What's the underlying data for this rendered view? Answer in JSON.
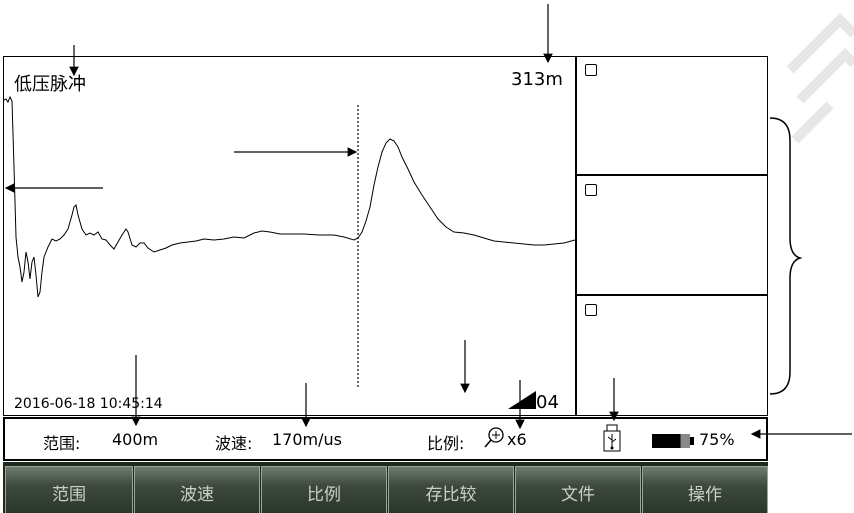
{
  "screen": {
    "mode_label": "低压脉冲",
    "distance_readout": "313m",
    "timestamp": "2016-06-18 10:45:14",
    "cursor_index": "04"
  },
  "status": {
    "range_label": "范围:",
    "range_value": "400m",
    "speed_label": "波速:",
    "speed_value": "170m/us",
    "scale_label": "比例:",
    "scale_value": "x6",
    "battery_percent": "75%",
    "battery_level": 0.75,
    "usb_icon": "usb-icon",
    "zoom_icon": "zoom-in-icon"
  },
  "softkeys": [
    {
      "label": "范围"
    },
    {
      "label": "波速"
    },
    {
      "label": "比例"
    },
    {
      "label": "存比较"
    },
    {
      "label": "文件"
    },
    {
      "label": "操作"
    }
  ],
  "side_slots": [
    {
      "checkbox_icon": "checkbox-icon"
    },
    {
      "checkbox_icon": "checkbox-icon"
    },
    {
      "checkbox_icon": "checkbox-icon"
    }
  ]
}
